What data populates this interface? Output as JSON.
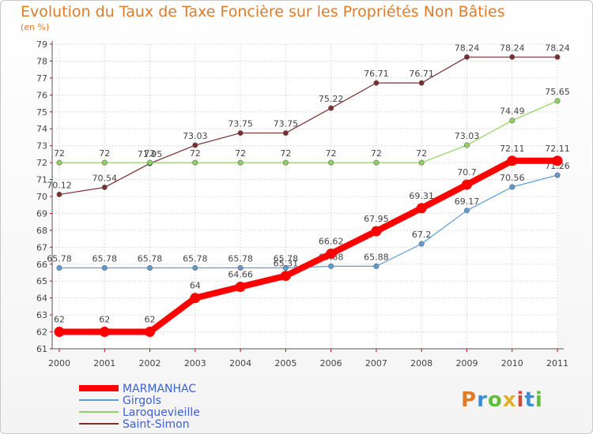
{
  "page": {
    "title": "Evolution du Taux de Taxe Foncière sur les Propriétés Non Bâties",
    "subtitle": "(en %)"
  },
  "logo": {
    "letters": [
      "P",
      "r",
      "o",
      "x",
      "i",
      "t",
      "i"
    ],
    "colors": [
      "#e07b2a",
      "#3c8fd4",
      "#5fbf3a",
      "#e0b02a",
      "#d04a3c",
      "#3c8fd4",
      "#5fbf3a"
    ]
  },
  "chart_data": {
    "type": "line",
    "title": "Evolution du Taux de Taxe Foncière sur les Propriétés Non Bâties",
    "ylabel": "(en %)",
    "xlabel": "",
    "x": [
      "2000",
      "2001",
      "2002",
      "2003",
      "2004",
      "2005",
      "2006",
      "2007",
      "2008",
      "2009",
      "2010",
      "2011"
    ],
    "ylim": [
      61,
      79
    ],
    "yticks": [
      "61",
      "62",
      "63",
      "64",
      "65",
      "66",
      "67",
      "68",
      "69",
      "70",
      "71",
      "72",
      "73",
      "74",
      "75",
      "76",
      "77",
      "78",
      "79"
    ],
    "grid": true,
    "legend": "bottom-left",
    "series": [
      {
        "name": "MARMANHAC",
        "color": "#ff0000",
        "values": [
          62,
          62,
          62,
          64,
          64.66,
          65.31,
          66.62,
          67.95,
          69.31,
          70.7,
          72.11,
          72.11
        ],
        "labels": [
          "62",
          "62",
          "62",
          "64",
          "64.66",
          "65.31",
          "66.62",
          "67.95",
          "69.31",
          "70.7",
          "72.11",
          "72.11"
        ]
      },
      {
        "name": "Girgols",
        "color": "#5a9ad5",
        "values": [
          65.78,
          65.78,
          65.78,
          65.78,
          65.78,
          65.78,
          65.88,
          65.88,
          67.2,
          69.17,
          70.56,
          71.26
        ],
        "labels": [
          "65.78",
          "65.78",
          "65.78",
          "65.78",
          "65.78",
          "65.78",
          "65.88",
          "65.88",
          "67.2",
          "69.17",
          "70.56",
          "71.26"
        ]
      },
      {
        "name": "Laroquevieille",
        "color": "#8fd45a",
        "values": [
          72,
          72,
          72,
          72,
          72,
          72,
          72,
          72,
          72,
          73.03,
          74.49,
          75.65
        ],
        "labels": [
          "72",
          "72",
          "72",
          "72",
          "72",
          "72",
          "72",
          "72",
          "72",
          "73.03",
          "74.49",
          "75.65"
        ]
      },
      {
        "name": "Saint-Simon",
        "color": "#7a2e2e",
        "values": [
          70.12,
          70.54,
          71.95,
          73.03,
          73.75,
          73.75,
          75.22,
          76.71,
          76.71,
          78.24,
          78.24,
          78.24
        ],
        "labels": [
          "70.12",
          "70.54",
          "71.95",
          "73.03",
          "73.75",
          "73.75",
          "75.22",
          "76.71",
          "76.71",
          "78.24",
          "78.24",
          "78.24"
        ]
      }
    ]
  }
}
